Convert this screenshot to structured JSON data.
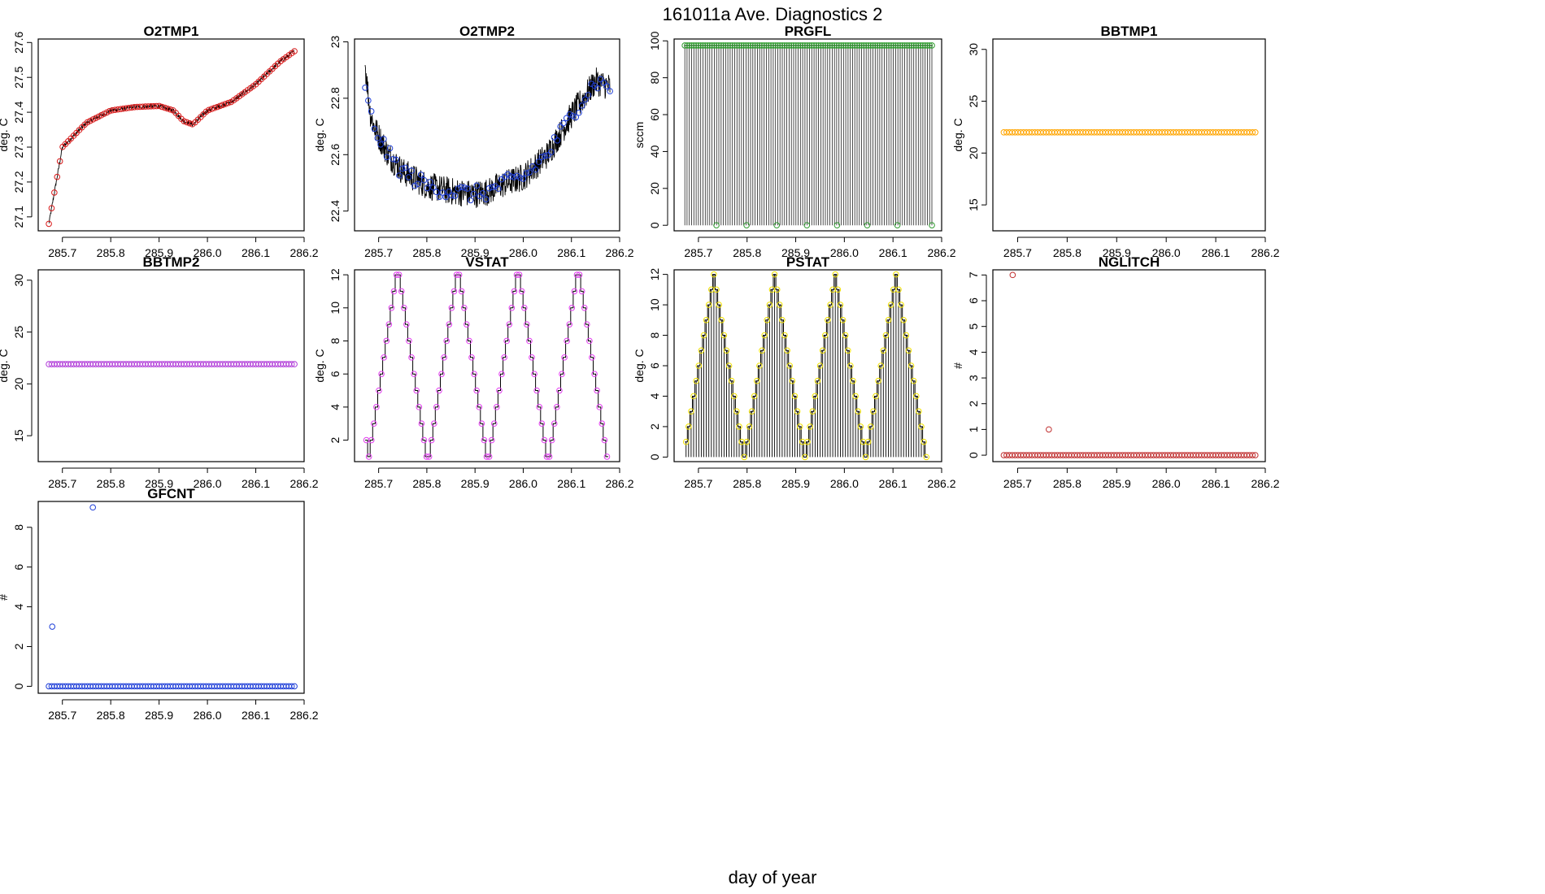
{
  "figure": {
    "title": "161011a   Ave. Diagnostics 2",
    "xlabel": "day of year",
    "x_ticks": [
      "285.7",
      "285.8",
      "285.9",
      "286.0",
      "286.1",
      "286.2"
    ]
  },
  "colors": {
    "red": "#d81b1b",
    "blue": "#1f3fd8",
    "green": "#2e9a2e",
    "orange": "#ffa500",
    "purple": "#b03ad8",
    "magenta": "#e23ef0",
    "yellow": "#f2e200",
    "brown": "#c03030"
  },
  "chart_data": [
    {
      "id": "o2tmp1",
      "type": "line",
      "title": "O2TMP1",
      "ylabel": "deg. C",
      "xlim": [
        285.65,
        286.2
      ],
      "ylim": [
        27.06,
        27.61
      ],
      "yticks": [
        27.1,
        27.2,
        27.3,
        27.4,
        27.5,
        27.6
      ],
      "series": [
        {
          "name": "O2TMP1",
          "x": [
            285.672,
            285.7,
            285.75,
            285.8,
            285.85,
            285.9,
            285.93,
            285.95,
            285.97,
            286.0,
            286.05,
            286.1,
            286.15,
            286.18
          ],
          "values": [
            27.08,
            27.3,
            27.37,
            27.405,
            27.415,
            27.418,
            27.405,
            27.375,
            27.365,
            27.405,
            27.43,
            27.48,
            27.545,
            27.575
          ]
        }
      ],
      "marker_color": "#d81b1b",
      "marker_count": 90,
      "noise": 0.006
    },
    {
      "id": "o2tmp2",
      "type": "line",
      "title": "O2TMP2",
      "ylabel": "deg. C",
      "xlim": [
        285.65,
        286.2
      ],
      "ylim": [
        22.33,
        23.01
      ],
      "yticks": [
        22.4,
        22.6,
        22.8,
        23.0
      ],
      "series": [
        {
          "name": "O2TMP2",
          "x": [
            285.672,
            285.69,
            285.72,
            285.75,
            285.8,
            285.85,
            285.9,
            285.93,
            285.95,
            286.0,
            286.05,
            286.1,
            286.15,
            286.18
          ],
          "values": [
            22.82,
            22.7,
            22.6,
            22.54,
            22.49,
            22.47,
            22.46,
            22.47,
            22.49,
            22.52,
            22.6,
            22.74,
            22.86,
            22.84
          ]
        }
      ],
      "marker_color": "#1f3fd8",
      "marker_count": 80,
      "noise": 0.05
    },
    {
      "id": "prgfl",
      "type": "line",
      "title": "PRGFL",
      "ylabel": "sccm",
      "xlim": [
        285.65,
        286.2
      ],
      "ylim": [
        -3,
        101
      ],
      "yticks": [
        0,
        20,
        40,
        60,
        80,
        100
      ],
      "series": [
        {
          "name": "PRGFL",
          "high": 97.5,
          "low": 0,
          "toggle_count": 110
        }
      ],
      "marker_color": "#2e9a2e",
      "marker_count": 110,
      "low_points_x": [
        285.737,
        285.799,
        285.861,
        285.923,
        285.985,
        286.047,
        286.109,
        286.18
      ]
    },
    {
      "id": "bbtmp1",
      "type": "scatter",
      "title": "BBTMP1",
      "ylabel": "deg. C",
      "xlim": [
        285.65,
        286.2
      ],
      "ylim": [
        12.5,
        31
      ],
      "yticks": [
        15,
        20,
        25,
        30
      ],
      "series": [
        {
          "name": "BBTMP1",
          "x_range": [
            285.672,
            286.18
          ],
          "value": 22.0
        }
      ],
      "marker_color": "#ffa500",
      "marker_count": 90
    },
    {
      "id": "bbtmp2",
      "type": "scatter",
      "title": "BBTMP2",
      "ylabel": "deg. C",
      "xlim": [
        285.65,
        286.2
      ],
      "ylim": [
        12.5,
        31
      ],
      "yticks": [
        15,
        20,
        25,
        30
      ],
      "series": [
        {
          "name": "BBTMP2",
          "x_range": [
            285.672,
            286.18
          ],
          "value": 21.9
        }
      ],
      "marker_color": "#b03ad8",
      "marker_count": 90
    },
    {
      "id": "vstat",
      "type": "line",
      "title": "VSTAT",
      "ylabel": "deg. C",
      "xlim": [
        285.65,
        286.2
      ],
      "ylim": [
        0.7,
        12.3
      ],
      "yticks": [
        2,
        4,
        6,
        8,
        10,
        12
      ],
      "series": [
        {
          "name": "VSTAT",
          "x_start": 285.672,
          "step": 0.0052,
          "values": [
            2,
            1,
            2,
            3,
            4,
            5,
            6,
            7,
            8,
            9,
            10,
            11,
            12,
            12,
            11,
            10,
            9,
            8,
            7,
            6,
            5,
            4,
            3,
            2,
            1,
            1,
            2,
            3,
            4,
            5,
            6,
            7,
            8,
            9,
            10,
            11,
            12,
            12,
            11,
            10,
            9,
            8,
            7,
            6,
            5,
            4,
            3,
            2,
            1,
            1,
            2,
            3,
            4,
            5,
            6,
            7,
            8,
            9,
            10,
            11,
            12,
            12,
            11,
            10,
            9,
            8,
            7,
            6,
            5,
            4,
            3,
            2,
            1,
            1,
            2,
            3,
            4,
            5,
            6,
            7,
            8,
            9,
            10,
            11,
            12,
            12,
            11,
            10,
            9,
            8,
            7,
            6,
            5,
            4,
            3,
            2,
            1
          ]
        }
      ],
      "marker_color": "#e23ef0"
    },
    {
      "id": "pstat",
      "type": "line",
      "title": "PSTAT",
      "ylabel": "deg. C",
      "xlim": [
        285.65,
        286.2
      ],
      "ylim": [
        -0.3,
        12.3
      ],
      "yticks": [
        0,
        2,
        4,
        6,
        8,
        10,
        12
      ],
      "series": [
        {
          "name": "PSTAT",
          "x_start": 285.672,
          "step": 0.0052,
          "values": [
            1,
            2,
            3,
            4,
            5,
            6,
            7,
            8,
            9,
            10,
            11,
            12,
            11,
            10,
            9,
            8,
            7,
            6,
            5,
            4,
            3,
            2,
            1,
            0,
            1,
            2,
            3,
            4,
            5,
            6,
            7,
            8,
            9,
            10,
            11,
            12,
            11,
            10,
            9,
            8,
            7,
            6,
            5,
            4,
            3,
            2,
            1,
            0,
            1,
            2,
            3,
            4,
            5,
            6,
            7,
            8,
            9,
            10,
            11,
            12,
            11,
            10,
            9,
            8,
            7,
            6,
            5,
            4,
            3,
            2,
            1,
            0,
            1,
            2,
            3,
            4,
            5,
            6,
            7,
            8,
            9,
            10,
            11,
            12,
            11,
            10,
            9,
            8,
            7,
            6,
            5,
            4,
            3,
            2,
            1,
            0
          ]
        }
      ],
      "marker_color": "#f2e200"
    },
    {
      "id": "nglitch",
      "type": "scatter",
      "title": "NGLITCH",
      "ylabel": "#",
      "xlim": [
        285.65,
        286.2
      ],
      "ylim": [
        -0.25,
        7.2
      ],
      "yticks": [
        0,
        1,
        2,
        3,
        4,
        5,
        6,
        7
      ],
      "series": [
        {
          "name": "NGLITCH",
          "x_range": [
            285.672,
            286.18
          ],
          "baseline": 0,
          "spikes": [
            {
              "x": 285.69,
              "y": 7
            },
            {
              "x": 285.763,
              "y": 1
            }
          ]
        }
      ],
      "marker_color": "#c03030",
      "marker_count": 90
    },
    {
      "id": "gfcnt",
      "type": "scatter",
      "title": "GFCNT",
      "ylabel": "#",
      "xlim": [
        285.65,
        286.2
      ],
      "ylim": [
        -0.35,
        9.3
      ],
      "yticks": [
        0,
        2,
        4,
        6,
        8
      ],
      "series": [
        {
          "name": "GFCNT",
          "x_range": [
            285.672,
            286.18
          ],
          "baseline": 0,
          "spikes": [
            {
              "x": 285.679,
              "y": 3
            },
            {
              "x": 285.763,
              "y": 9
            }
          ]
        }
      ],
      "marker_color": "#1f3fd8",
      "marker_count": 90
    }
  ]
}
